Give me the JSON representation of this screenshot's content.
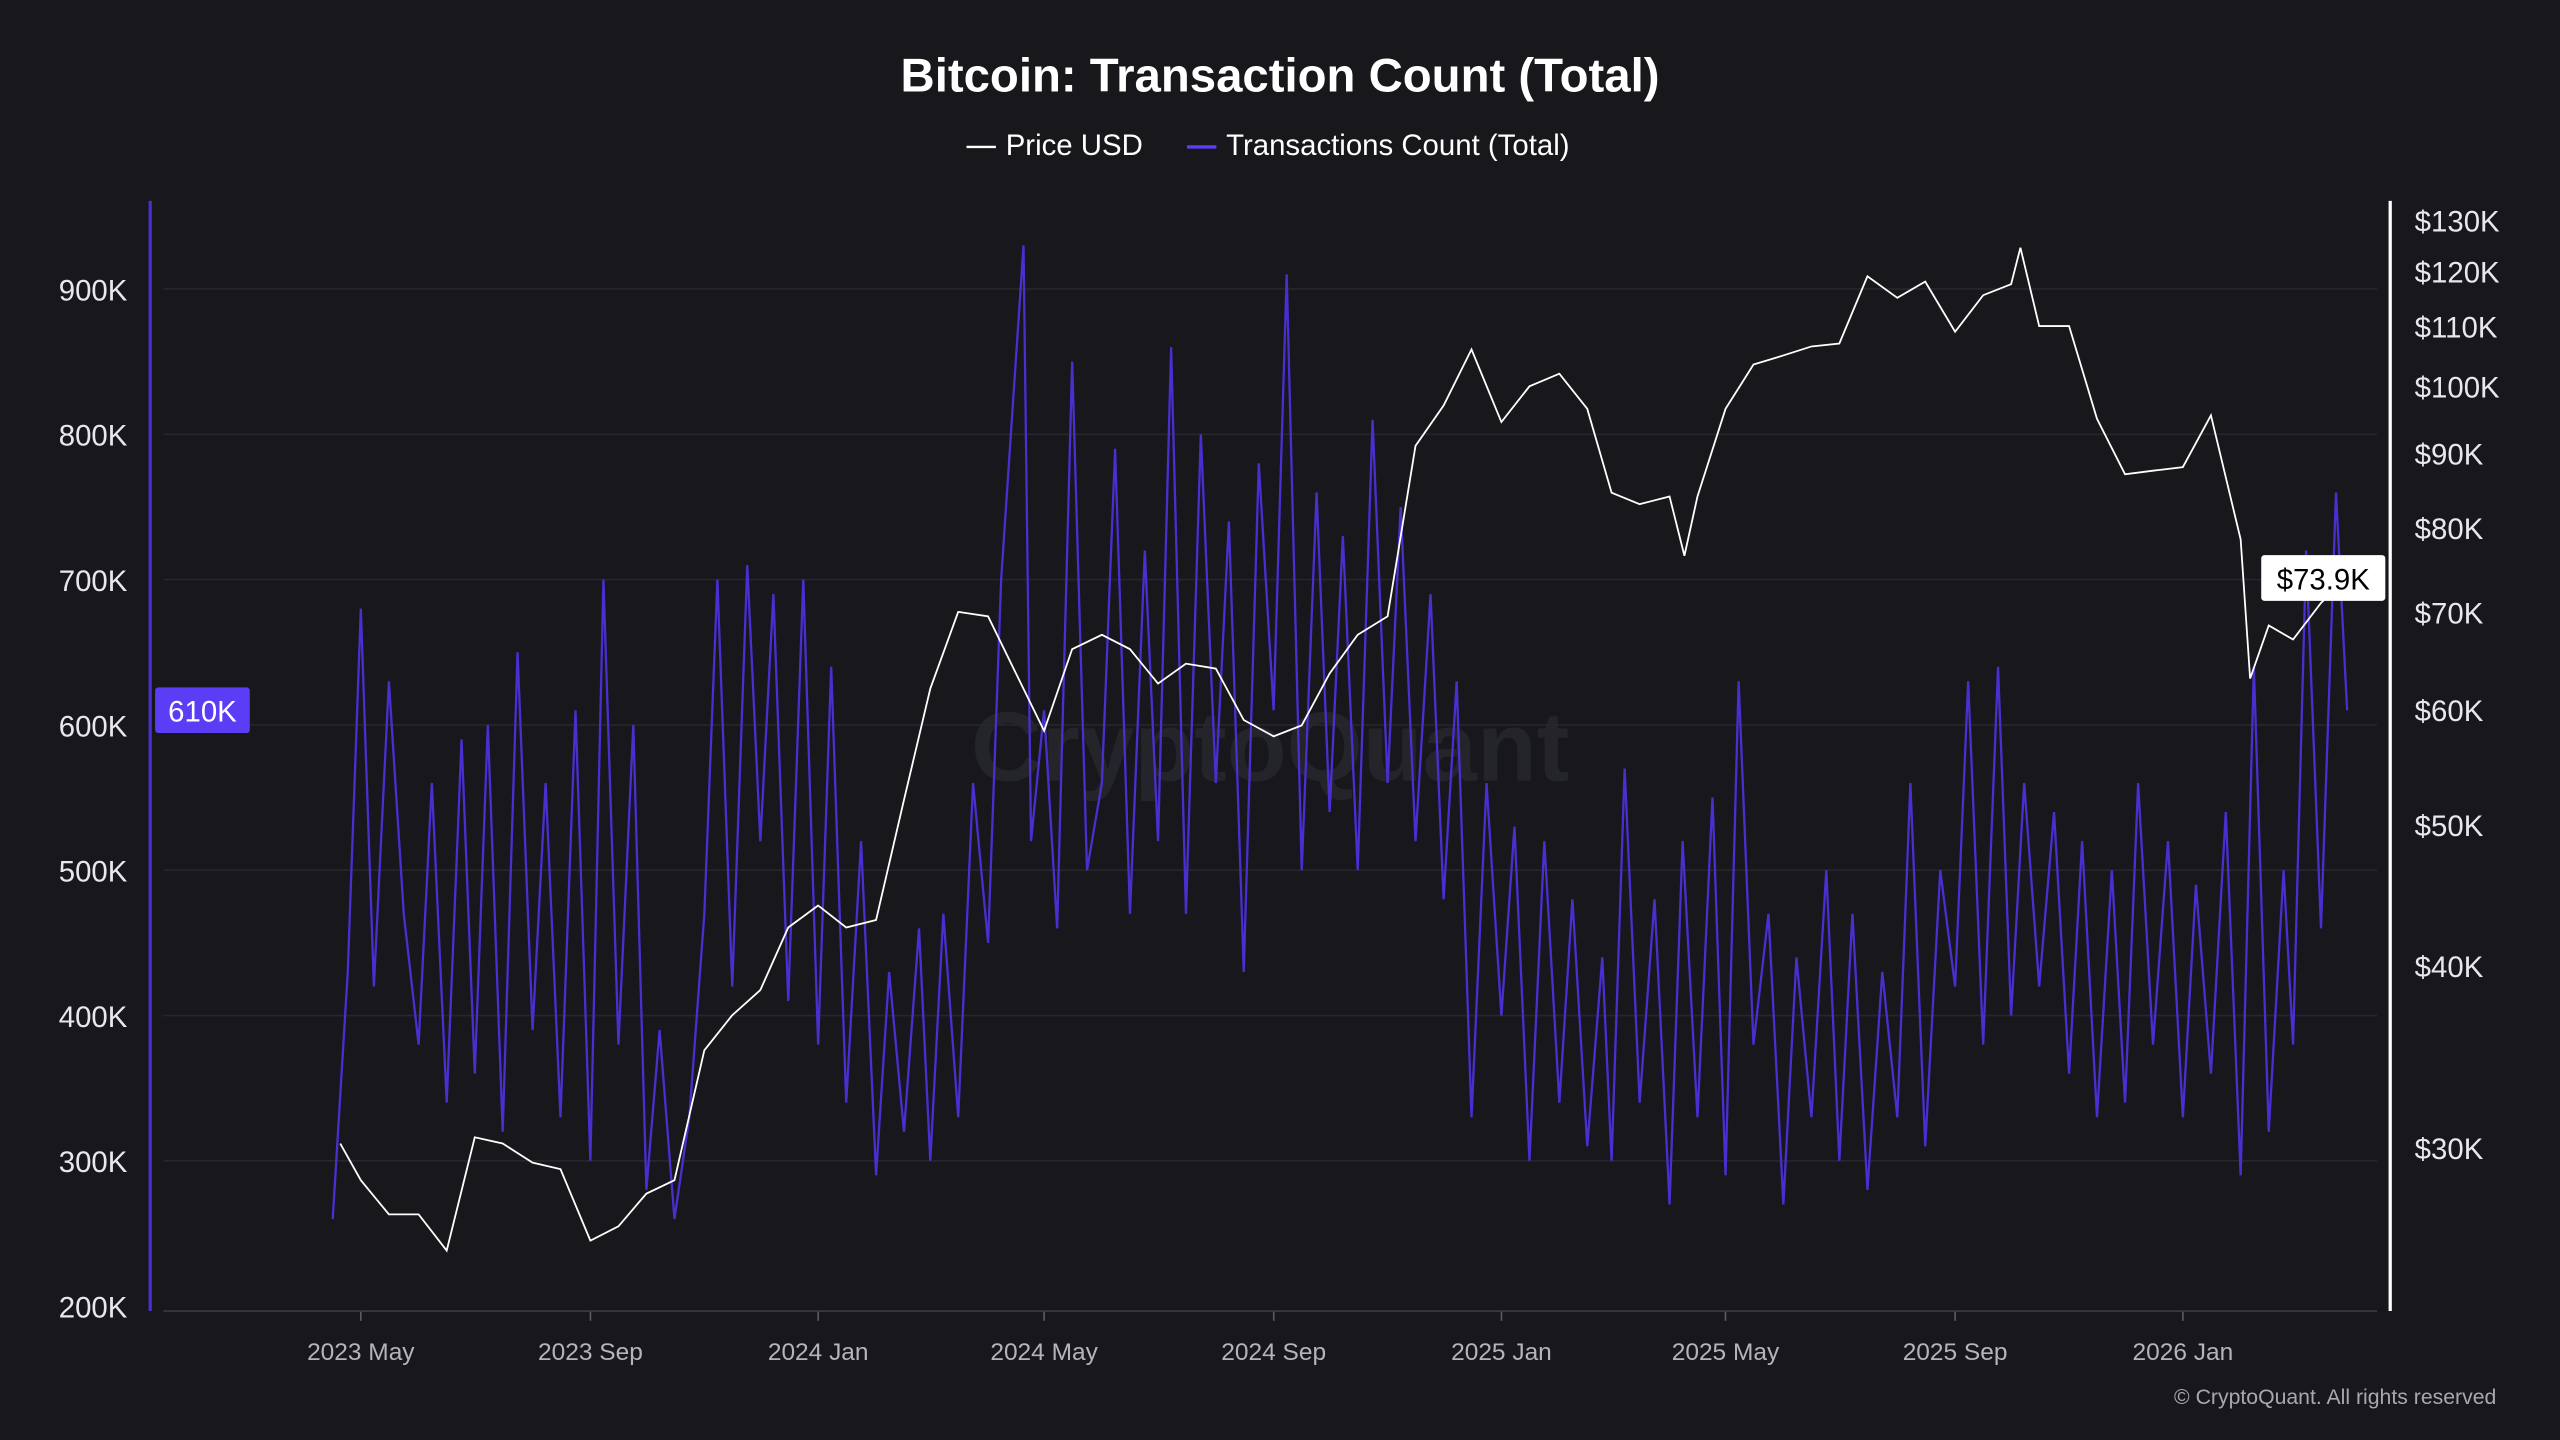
{
  "chart_data": {
    "type": "line",
    "title": "Bitcoin: Transaction Count (Total)",
    "legend_placement": "top-center",
    "grid": true,
    "colors": {
      "background": "#17171c",
      "price": "#ffffff",
      "transactions": "#4a2fd0",
      "badge": "#5b3df5",
      "grid": "#2a2a31"
    },
    "x_ticks": [
      {
        "date": "2023-05-01",
        "label": "2023 May"
      },
      {
        "date": "2023-09-01",
        "label": "2023 Sep"
      },
      {
        "date": "2024-01-01",
        "label": "2024 Jan"
      },
      {
        "date": "2024-05-01",
        "label": "2024 May"
      },
      {
        "date": "2024-09-01",
        "label": "2024 Sep"
      },
      {
        "date": "2025-01-01",
        "label": "2025 Jan"
      },
      {
        "date": "2025-05-01",
        "label": "2025 May"
      },
      {
        "date": "2025-09-01",
        "label": "2025 Sep"
      },
      {
        "date": "2026-01-01",
        "label": "2026 Jan"
      }
    ],
    "y_left": {
      "scale": "linear",
      "range": [
        200000,
        900000
      ],
      "ticks": [
        {
          "v": 200000,
          "label": "200K"
        },
        {
          "v": 300000,
          "label": "300K"
        },
        {
          "v": 400000,
          "label": "400K"
        },
        {
          "v": 500000,
          "label": "500K"
        },
        {
          "v": 600000,
          "label": "600K"
        },
        {
          "v": 700000,
          "label": "700K"
        },
        {
          "v": 800000,
          "label": "800K"
        },
        {
          "v": 900000,
          "label": "900K"
        }
      ]
    },
    "y_right": {
      "scale": "log",
      "range": [
        30000,
        130000
      ],
      "ticks": [
        {
          "v": 30000,
          "label": "$30K"
        },
        {
          "v": 40000,
          "label": "$40K"
        },
        {
          "v": 50000,
          "label": "$50K"
        },
        {
          "v": 60000,
          "label": "$60K"
        },
        {
          "v": 70000,
          "label": "$70K"
        },
        {
          "v": 80000,
          "label": "$80K"
        },
        {
          "v": 90000,
          "label": "$90K"
        },
        {
          "v": 100000,
          "label": "$100K"
        },
        {
          "v": 110000,
          "label": "$110K"
        },
        {
          "v": 120000,
          "label": "$120K"
        },
        {
          "v": 130000,
          "label": "$130K"
        }
      ]
    },
    "current_values": {
      "transactions": "610K",
      "price": "$73.9K"
    },
    "series": [
      {
        "name": "Price USD",
        "axis": "right",
        "unit": "USD (K)",
        "points": [
          [
            "2023-04-20",
            30.2
          ],
          [
            "2023-05-01",
            28.5
          ],
          [
            "2023-05-16",
            27.0
          ],
          [
            "2023-06-01",
            27.0
          ],
          [
            "2023-06-16",
            25.5
          ],
          [
            "2023-07-01",
            30.5
          ],
          [
            "2023-07-16",
            30.2
          ],
          [
            "2023-08-01",
            29.3
          ],
          [
            "2023-08-16",
            29.0
          ],
          [
            "2023-09-01",
            25.9
          ],
          [
            "2023-09-16",
            26.5
          ],
          [
            "2023-10-01",
            27.9
          ],
          [
            "2023-10-16",
            28.5
          ],
          [
            "2023-11-01",
            35.0
          ],
          [
            "2023-11-16",
            37.0
          ],
          [
            "2023-12-01",
            38.5
          ],
          [
            "2023-12-16",
            42.5
          ],
          [
            "2024-01-01",
            44.0
          ],
          [
            "2024-01-16",
            42.5
          ],
          [
            "2024-02-01",
            43.0
          ],
          [
            "2024-02-16",
            52.0
          ],
          [
            "2024-03-01",
            62.0
          ],
          [
            "2024-03-16",
            70.0
          ],
          [
            "2024-04-01",
            69.5
          ],
          [
            "2024-04-16",
            63.5
          ],
          [
            "2024-05-01",
            58.0
          ],
          [
            "2024-05-16",
            66.0
          ],
          [
            "2024-06-01",
            67.5
          ],
          [
            "2024-06-16",
            66.0
          ],
          [
            "2024-07-01",
            62.5
          ],
          [
            "2024-07-16",
            64.5
          ],
          [
            "2024-08-01",
            64.0
          ],
          [
            "2024-08-16",
            59.0
          ],
          [
            "2024-09-01",
            57.5
          ],
          [
            "2024-09-16",
            58.5
          ],
          [
            "2024-10-01",
            63.5
          ],
          [
            "2024-10-16",
            67.5
          ],
          [
            "2024-11-01",
            69.5
          ],
          [
            "2024-11-16",
            91.0
          ],
          [
            "2024-12-01",
            97.0
          ],
          [
            "2024-12-16",
            106.0
          ],
          [
            "2025-01-01",
            94.5
          ],
          [
            "2025-01-16",
            100.0
          ],
          [
            "2025-02-01",
            102.0
          ],
          [
            "2025-02-16",
            96.5
          ],
          [
            "2025-03-01",
            84.5
          ],
          [
            "2025-03-16",
            83.0
          ],
          [
            "2025-04-01",
            84.0
          ],
          [
            "2025-04-09",
            76.5
          ],
          [
            "2025-04-16",
            84.0
          ],
          [
            "2025-05-01",
            96.5
          ],
          [
            "2025-05-16",
            103.5
          ],
          [
            "2025-06-01",
            105.0
          ],
          [
            "2025-06-16",
            106.5
          ],
          [
            "2025-07-01",
            107.0
          ],
          [
            "2025-07-16",
            119.0
          ],
          [
            "2025-08-01",
            115.0
          ],
          [
            "2025-08-16",
            118.0
          ],
          [
            "2025-09-01",
            109.0
          ],
          [
            "2025-09-16",
            115.5
          ],
          [
            "2025-10-01",
            117.5
          ],
          [
            "2025-10-06",
            124.5
          ],
          [
            "2025-10-16",
            110.0
          ],
          [
            "2025-11-01",
            110.0
          ],
          [
            "2025-11-16",
            95.0
          ],
          [
            "2025-12-01",
            87.0
          ],
          [
            "2025-12-16",
            87.5
          ],
          [
            "2026-01-01",
            88.0
          ],
          [
            "2026-01-16",
            95.5
          ],
          [
            "2026-02-01",
            78.5
          ],
          [
            "2026-02-06",
            63.0
          ],
          [
            "2026-02-16",
            68.5
          ],
          [
            "2026-03-01",
            67.0
          ],
          [
            "2026-03-16",
            71.0
          ],
          [
            "2026-03-30",
            73.9
          ]
        ]
      },
      {
        "name": "Transactions Count (Total)",
        "axis": "left",
        "unit": "K",
        "points": [
          [
            "2023-04-16",
            260
          ],
          [
            "2023-04-24",
            430
          ],
          [
            "2023-05-01",
            680
          ],
          [
            "2023-05-08",
            420
          ],
          [
            "2023-05-16",
            630
          ],
          [
            "2023-05-24",
            470
          ],
          [
            "2023-06-01",
            380
          ],
          [
            "2023-06-08",
            560
          ],
          [
            "2023-06-16",
            340
          ],
          [
            "2023-06-24",
            590
          ],
          [
            "2023-07-01",
            360
          ],
          [
            "2023-07-08",
            600
          ],
          [
            "2023-07-16",
            320
          ],
          [
            "2023-07-24",
            650
          ],
          [
            "2023-08-01",
            390
          ],
          [
            "2023-08-08",
            560
          ],
          [
            "2023-08-16",
            330
          ],
          [
            "2023-08-24",
            610
          ],
          [
            "2023-09-01",
            300
          ],
          [
            "2023-09-08",
            700
          ],
          [
            "2023-09-16",
            380
          ],
          [
            "2023-09-24",
            600
          ],
          [
            "2023-10-01",
            280
          ],
          [
            "2023-10-08",
            390
          ],
          [
            "2023-10-16",
            260
          ],
          [
            "2023-10-24",
            330
          ],
          [
            "2023-11-01",
            470
          ],
          [
            "2023-11-08",
            700
          ],
          [
            "2023-11-16",
            420
          ],
          [
            "2023-11-24",
            710
          ],
          [
            "2023-12-01",
            520
          ],
          [
            "2023-12-08",
            690
          ],
          [
            "2023-12-16",
            410
          ],
          [
            "2023-12-24",
            700
          ],
          [
            "2024-01-01",
            380
          ],
          [
            "2024-01-08",
            640
          ],
          [
            "2024-01-16",
            340
          ],
          [
            "2024-01-24",
            520
          ],
          [
            "2024-02-01",
            290
          ],
          [
            "2024-02-08",
            430
          ],
          [
            "2024-02-16",
            320
          ],
          [
            "2024-02-24",
            460
          ],
          [
            "2024-03-01",
            300
          ],
          [
            "2024-03-08",
            470
          ],
          [
            "2024-03-16",
            330
          ],
          [
            "2024-03-24",
            560
          ],
          [
            "2024-04-01",
            450
          ],
          [
            "2024-04-08",
            700
          ],
          [
            "2024-04-20",
            930
          ],
          [
            "2024-04-24",
            520
          ],
          [
            "2024-05-01",
            610
          ],
          [
            "2024-05-08",
            460
          ],
          [
            "2024-05-16",
            850
          ],
          [
            "2024-05-24",
            500
          ],
          [
            "2024-06-01",
            560
          ],
          [
            "2024-06-08",
            790
          ],
          [
            "2024-06-16",
            470
          ],
          [
            "2024-06-24",
            720
          ],
          [
            "2024-07-01",
            520
          ],
          [
            "2024-07-08",
            860
          ],
          [
            "2024-07-16",
            470
          ],
          [
            "2024-07-24",
            800
          ],
          [
            "2024-08-01",
            560
          ],
          [
            "2024-08-08",
            740
          ],
          [
            "2024-08-16",
            430
          ],
          [
            "2024-08-24",
            780
          ],
          [
            "2024-09-01",
            610
          ],
          [
            "2024-09-08",
            910
          ],
          [
            "2024-09-16",
            500
          ],
          [
            "2024-09-24",
            760
          ],
          [
            "2024-10-01",
            540
          ],
          [
            "2024-10-08",
            730
          ],
          [
            "2024-10-16",
            500
          ],
          [
            "2024-10-24",
            810
          ],
          [
            "2024-11-01",
            560
          ],
          [
            "2024-11-08",
            750
          ],
          [
            "2024-11-16",
            520
          ],
          [
            "2024-11-24",
            690
          ],
          [
            "2024-12-01",
            480
          ],
          [
            "2024-12-08",
            630
          ],
          [
            "2024-12-16",
            330
          ],
          [
            "2024-12-24",
            560
          ],
          [
            "2025-01-01",
            400
          ],
          [
            "2025-01-08",
            530
          ],
          [
            "2025-01-16",
            300
          ],
          [
            "2025-01-24",
            520
          ],
          [
            "2025-02-01",
            340
          ],
          [
            "2025-02-08",
            480
          ],
          [
            "2025-02-16",
            310
          ],
          [
            "2025-02-24",
            440
          ],
          [
            "2025-03-01",
            300
          ],
          [
            "2025-03-08",
            570
          ],
          [
            "2025-03-16",
            340
          ],
          [
            "2025-03-24",
            480
          ],
          [
            "2025-04-01",
            270
          ],
          [
            "2025-04-08",
            520
          ],
          [
            "2025-04-16",
            330
          ],
          [
            "2025-04-24",
            550
          ],
          [
            "2025-05-01",
            290
          ],
          [
            "2025-05-08",
            630
          ],
          [
            "2025-05-16",
            380
          ],
          [
            "2025-05-24",
            470
          ],
          [
            "2025-06-01",
            270
          ],
          [
            "2025-06-08",
            440
          ],
          [
            "2025-06-16",
            330
          ],
          [
            "2025-06-24",
            500
          ],
          [
            "2025-07-01",
            300
          ],
          [
            "2025-07-08",
            470
          ],
          [
            "2025-07-16",
            280
          ],
          [
            "2025-07-24",
            430
          ],
          [
            "2025-08-01",
            330
          ],
          [
            "2025-08-08",
            560
          ],
          [
            "2025-08-16",
            310
          ],
          [
            "2025-08-24",
            500
          ],
          [
            "2025-09-01",
            420
          ],
          [
            "2025-09-08",
            630
          ],
          [
            "2025-09-16",
            380
          ],
          [
            "2025-09-24",
            640
          ],
          [
            "2025-10-01",
            400
          ],
          [
            "2025-10-08",
            560
          ],
          [
            "2025-10-16",
            420
          ],
          [
            "2025-10-24",
            540
          ],
          [
            "2025-11-01",
            360
          ],
          [
            "2025-11-08",
            520
          ],
          [
            "2025-11-16",
            330
          ],
          [
            "2025-11-24",
            500
          ],
          [
            "2025-12-01",
            340
          ],
          [
            "2025-12-08",
            560
          ],
          [
            "2025-12-16",
            380
          ],
          [
            "2025-12-24",
            520
          ],
          [
            "2026-01-01",
            330
          ],
          [
            "2026-01-08",
            490
          ],
          [
            "2026-01-16",
            360
          ],
          [
            "2026-01-24",
            540
          ],
          [
            "2026-02-01",
            290
          ],
          [
            "2026-02-08",
            640
          ],
          [
            "2026-02-16",
            320
          ],
          [
            "2026-02-24",
            500
          ],
          [
            "2026-03-01",
            380
          ],
          [
            "2026-03-08",
            720
          ],
          [
            "2026-03-16",
            460
          ],
          [
            "2026-03-24",
            760
          ],
          [
            "2026-03-30",
            610
          ]
        ]
      }
    ]
  },
  "watermark": "CryptoQuant",
  "copyright": "© CryptoQuant. All rights reserved"
}
